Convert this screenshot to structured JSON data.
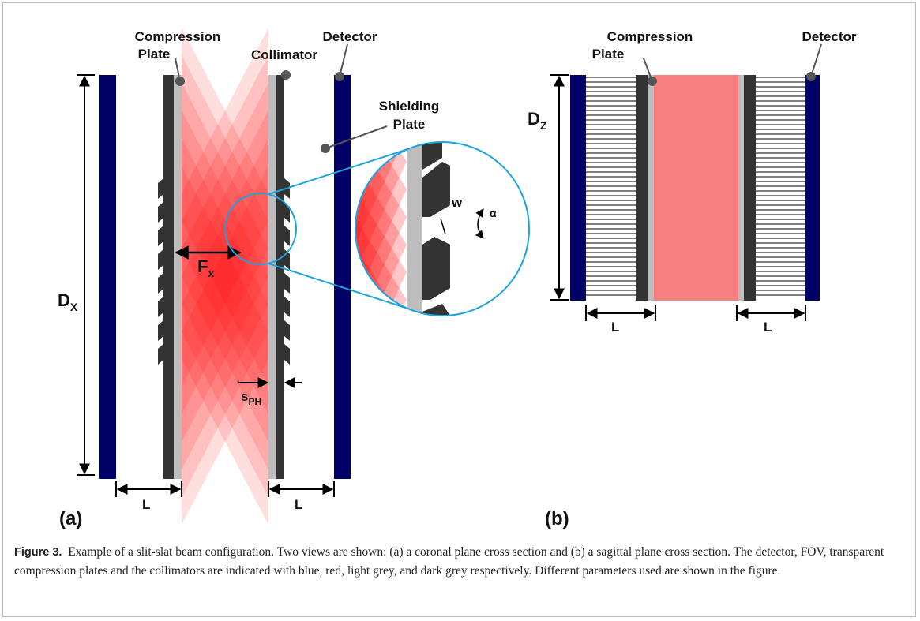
{
  "panel_a": {
    "label": "(a)",
    "compression_plate": [
      "Compression",
      "Plate"
    ],
    "collimator": "Collimator",
    "detector": "Detector",
    "shielding_plate": [
      "Shielding",
      "Plate"
    ],
    "dx": {
      "main": "D",
      "sub": "X"
    },
    "fx": {
      "main": "F",
      "sub": "x"
    },
    "sph": {
      "main": "s",
      "sub": "PH"
    },
    "w": "w",
    "alpha": "α",
    "l_left": "L",
    "l_right": "L"
  },
  "panel_b": {
    "label": "(b)",
    "compression_plate": [
      "Compression",
      "Plate"
    ],
    "detector": "Detector",
    "dz": {
      "main": "D",
      "sub": "Z"
    },
    "l_left": "L",
    "l_right": "L"
  },
  "caption": {
    "label": "Figure 3.",
    "text": "Example of a slit-slat beam configuration. Two views are shown: (a) a coronal plane cross section and (b) a sagittal plane cross section. The detector, FOV, transparent compression plates and the collimators are indicated with blue, red, light grey, and dark grey respectively. Different parameters used are shown in the figure."
  }
}
